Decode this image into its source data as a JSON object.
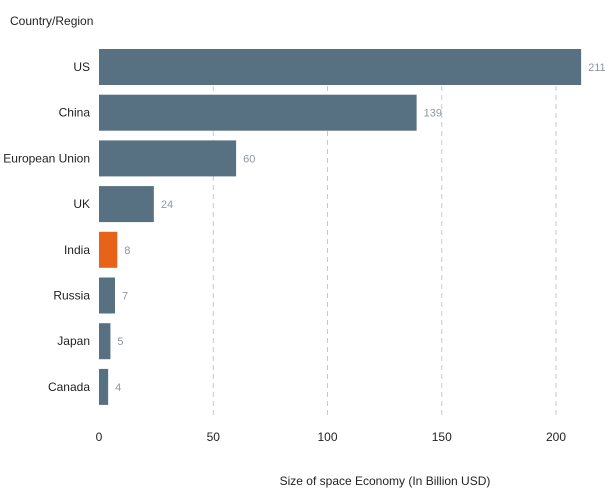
{
  "chart_data": {
    "type": "bar",
    "orientation": "horizontal",
    "title": "",
    "ylabel": "Country/Region",
    "xlabel": "Size of space Economy (In Billion USD)",
    "categories": [
      "US",
      "China",
      "European Union",
      "UK",
      "India",
      "Russia",
      "Japan",
      "Canada"
    ],
    "values": [
      211,
      139,
      60,
      24,
      8,
      7,
      5,
      4
    ],
    "highlight_category": "India",
    "xlim": [
      0,
      220
    ],
    "xticks": [
      0,
      50,
      100,
      150,
      200
    ],
    "grid": "vertical dashed",
    "colors": {
      "bar": "#587182",
      "highlight": "#e8631a",
      "value_label": "#8f979e",
      "text": "#222222",
      "grid": "#c8c8c8"
    }
  }
}
